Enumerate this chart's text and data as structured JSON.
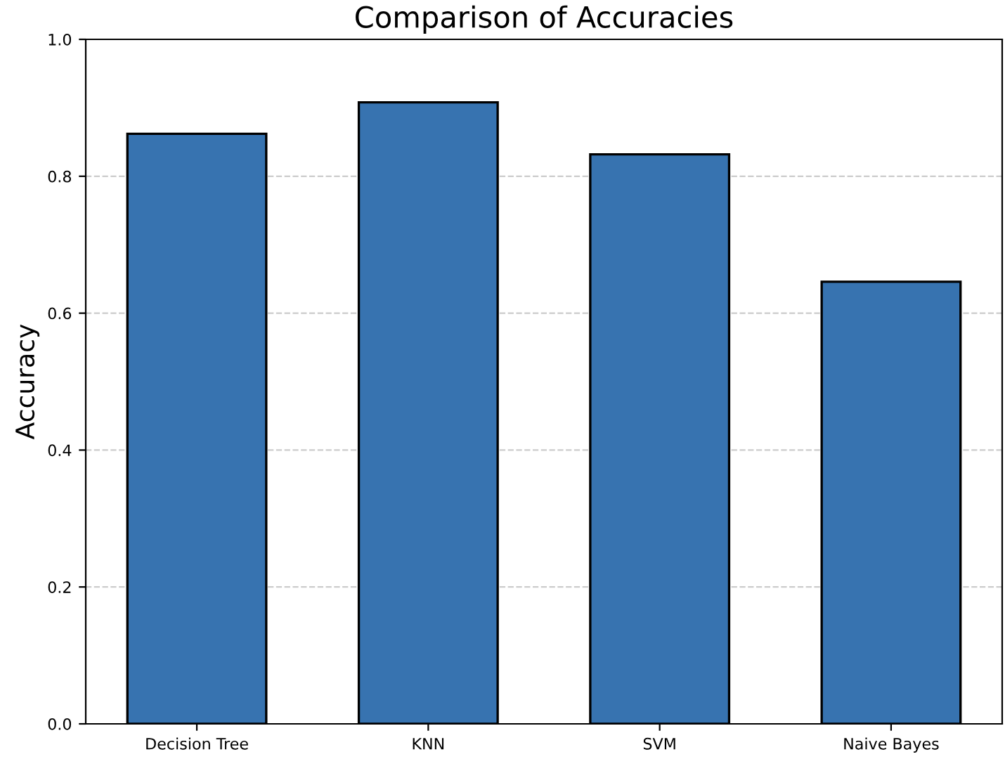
{
  "chart_data": {
    "type": "bar",
    "title": "Comparison of Accuracies",
    "ylabel": "Accuracy",
    "categories": [
      "Decision Tree",
      "KNN",
      "SVM",
      "Naive Bayes"
    ],
    "values": [
      0.862,
      0.908,
      0.832,
      0.646
    ],
    "color": "#3773b0",
    "ylim": [
      0,
      1.0
    ],
    "yticks": [
      {
        "value": 0,
        "label": "0.0"
      },
      0.2,
      0.4,
      0.6,
      0.8,
      {
        "value": 1,
        "label": "1.0"
      }
    ],
    "grid": "y"
  }
}
